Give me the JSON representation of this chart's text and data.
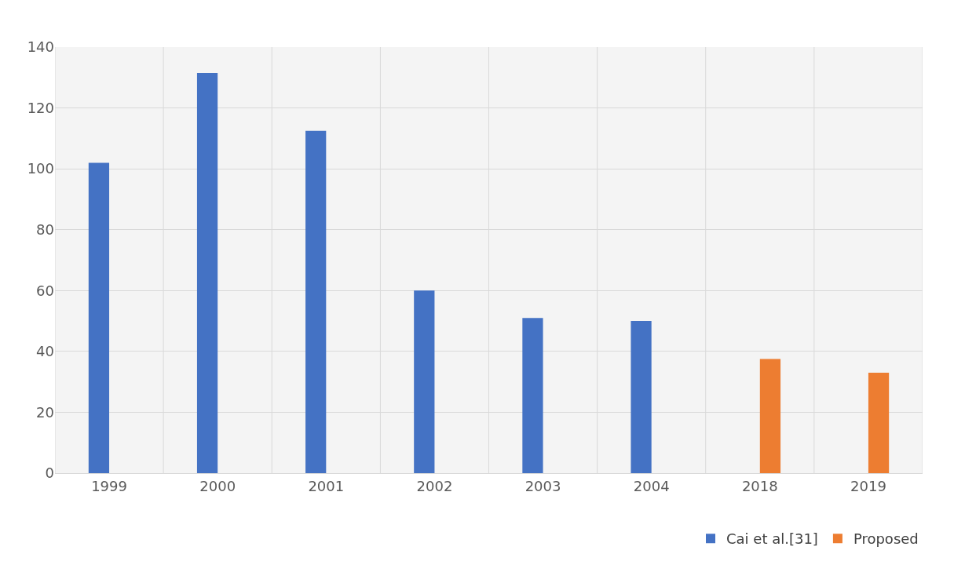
{
  "chart_data": {
    "type": "bar",
    "categories": [
      "1999",
      "2000",
      "2001",
      "2002",
      "2003",
      "2004",
      "2018",
      "2019"
    ],
    "series": [
      {
        "name": "Cai et al.[31]",
        "color": "#4472c4",
        "values": [
          102,
          131.5,
          112.5,
          60,
          51,
          50,
          null,
          null
        ]
      },
      {
        "name": "Proposed",
        "color": "#ed7d31",
        "values": [
          null,
          null,
          null,
          null,
          null,
          null,
          37.5,
          33
        ]
      }
    ],
    "ylim": [
      0,
      140
    ],
    "yticks": [
      0,
      20,
      40,
      60,
      80,
      100,
      120,
      140
    ],
    "grid": true,
    "legend": "bottom right"
  }
}
